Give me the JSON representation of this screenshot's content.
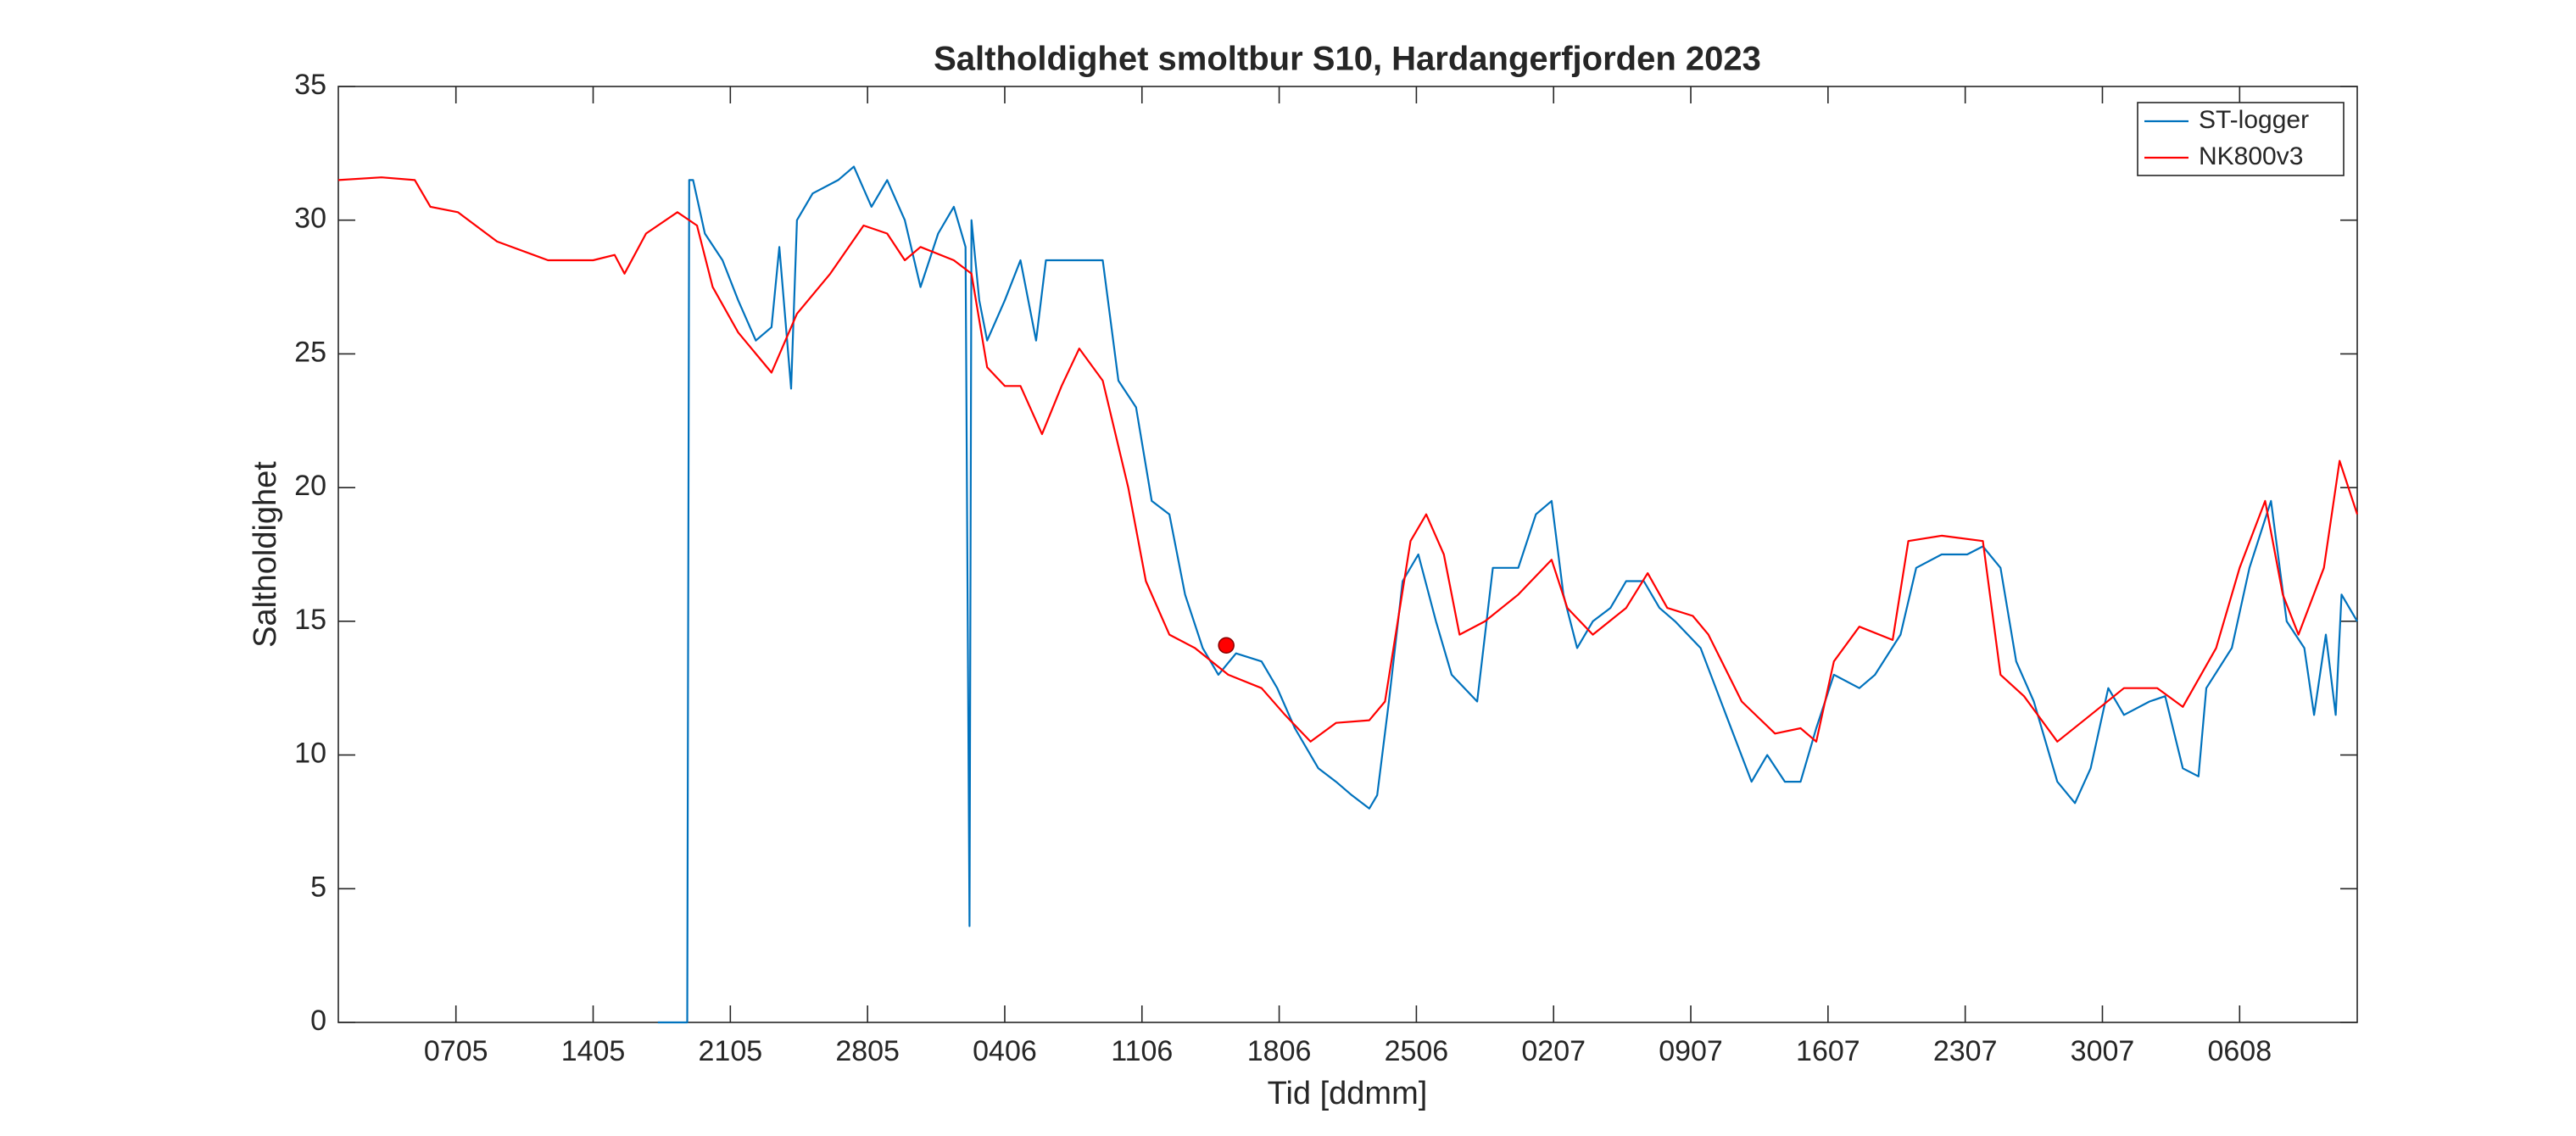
{
  "chart_data": {
    "type": "line",
    "title": "Saltholdighet smoltbur S10, Hardangerfjorden 2023",
    "xlabel": "Tid [ddmm]",
    "ylabel": "Saltholdighet",
    "xlim": [
      121,
      224
    ],
    "ylim": [
      0,
      35
    ],
    "xticks": [
      {
        "value": 127,
        "label": "0705"
      },
      {
        "value": 134,
        "label": "1405"
      },
      {
        "value": 141,
        "label": "2105"
      },
      {
        "value": 148,
        "label": "2805"
      },
      {
        "value": 155,
        "label": "0406"
      },
      {
        "value": 162,
        "label": "1106"
      },
      {
        "value": 169,
        "label": "1806"
      },
      {
        "value": 176,
        "label": "2506"
      },
      {
        "value": 183,
        "label": "0207"
      },
      {
        "value": 190,
        "label": "0907"
      },
      {
        "value": 197,
        "label": "1607"
      },
      {
        "value": 204,
        "label": "2307"
      },
      {
        "value": 211,
        "label": "3007"
      },
      {
        "value": 218,
        "label": "0608"
      }
    ],
    "yticks": [
      0,
      5,
      10,
      15,
      20,
      25,
      30,
      35
    ],
    "grid": false,
    "legend": "upper right",
    "series": [
      {
        "name": "ST-logger",
        "color": "#0072bd",
        "x": [
          137.3,
          137.6,
          138.8,
          138.9,
          139.1,
          139.7,
          140.6,
          141.4,
          142.3,
          143.1,
          143.5,
          144.1,
          144.4,
          145.2,
          146.5,
          147.3,
          148.2,
          149.0,
          149.9,
          150.7,
          151.6,
          152.4,
          153.0,
          153.2,
          153.3,
          153.7,
          154.1,
          155.0,
          155.8,
          156.6,
          157.1,
          158.3,
          160.0,
          160.8,
          161.7,
          162.5,
          163.4,
          164.2,
          165.1,
          165.9,
          166.8,
          168.1,
          168.9,
          169.8,
          171.0,
          171.9,
          172.7,
          173.6,
          174.0,
          174.6,
          175.3,
          176.1,
          177.0,
          177.8,
          179.1,
          179.9,
          181.2,
          182.1,
          182.9,
          183.5,
          184.2,
          185.0,
          185.9,
          186.7,
          187.6,
          188.4,
          189.2,
          190.5,
          191.8,
          193.1,
          193.9,
          194.8,
          195.6,
          196.4,
          197.3,
          198.6,
          199.4,
          200.7,
          201.5,
          202.8,
          204.1,
          204.9,
          205.8,
          206.6,
          207.5,
          208.7,
          209.6,
          210.4,
          211.3,
          212.1,
          213.4,
          214.2,
          215.1,
          215.9,
          216.3,
          217.6,
          218.5,
          219.6,
          220.4,
          221.3,
          221.8,
          222.4,
          222.9,
          223.2,
          224.0
        ],
        "values": [
          0,
          0,
          0,
          31.5,
          31.5,
          29.5,
          28.5,
          27,
          25.5,
          26,
          29,
          23.7,
          30,
          31,
          31.5,
          32,
          30.5,
          31.5,
          30,
          27.5,
          29.5,
          30.5,
          29,
          3.6,
          30,
          27,
          25.5,
          27,
          28.5,
          25.5,
          28.5,
          28.5,
          28.5,
          24,
          23,
          19.5,
          19,
          16,
          14,
          13,
          13.8,
          13.5,
          12.5,
          11,
          9.5,
          9,
          8.5,
          8,
          8.5,
          12,
          16.5,
          17.5,
          15,
          13,
          12,
          17,
          17,
          19,
          19.5,
          16,
          14,
          15,
          15.5,
          16.5,
          16.5,
          15.5,
          15,
          14,
          11.5,
          9,
          10,
          9,
          9,
          11,
          13,
          12.5,
          13,
          14.5,
          17,
          17.5,
          17.5,
          17.8,
          17,
          13.5,
          12,
          9,
          8.2,
          9.5,
          12.5,
          11.5,
          12,
          12.2,
          9.5,
          9.2,
          12.5,
          14,
          17,
          19.5,
          15,
          14,
          11.5,
          14.5,
          11.5,
          16,
          15
        ]
      },
      {
        "name": "NK800v3",
        "color": "#ff0000",
        "x": [
          121.0,
          123.2,
          124.9,
          125.7,
          127.1,
          129.1,
          131.7,
          134.0,
          135.1,
          135.6,
          136.7,
          138.3,
          139.3,
          140.1,
          141.4,
          143.1,
          144.4,
          146.1,
          147.8,
          149.0,
          149.9,
          150.7,
          152.4,
          153.3,
          154.1,
          155.0,
          155.8,
          156.9,
          157.9,
          158.8,
          160.0,
          161.3,
          162.2,
          163.4,
          164.7,
          166.4,
          168.1,
          169.3,
          170.6,
          171.9,
          173.6,
          174.4,
          175.7,
          176.5,
          177.4,
          178.2,
          179.5,
          181.2,
          182.9,
          183.7,
          185.0,
          186.7,
          187.8,
          188.8,
          190.1,
          190.9,
          192.6,
          194.3,
          195.6,
          196.4,
          197.3,
          198.6,
          200.3,
          201.1,
          202.8,
          204.9,
          205.8,
          207.0,
          208.7,
          210.4,
          212.1,
          213.8,
          215.1,
          216.8,
          218.0,
          219.3,
          220.2,
          221.0,
          222.3,
          223.1,
          224.0
        ],
        "values": [
          31.5,
          31.6,
          31.5,
          30.5,
          30.3,
          29.2,
          28.5,
          28.5,
          28.7,
          28.0,
          29.5,
          30.3,
          29.8,
          27.5,
          25.8,
          24.3,
          26.5,
          28,
          29.8,
          29.5,
          28.5,
          29,
          28.5,
          28,
          24.5,
          23.8,
          23.8,
          22,
          23.8,
          25.2,
          24,
          20,
          16.5,
          14.5,
          14,
          13,
          12.5,
          11.5,
          10.5,
          11.2,
          11.3,
          12,
          18,
          19,
          17.5,
          14.5,
          15,
          16,
          17.3,
          15.5,
          14.5,
          15.5,
          16.8,
          15.5,
          15.2,
          14.5,
          12,
          10.8,
          11,
          10.5,
          13.5,
          14.8,
          14.3,
          18,
          18.2,
          18,
          13,
          12.2,
          10.5,
          11.5,
          12.5,
          12.5,
          11.8,
          14,
          17,
          19.5,
          16,
          14.5,
          17,
          21,
          19
        ]
      }
    ],
    "marker": {
      "x": 166.3,
      "y": 14.1,
      "color": "#ff0000"
    }
  }
}
